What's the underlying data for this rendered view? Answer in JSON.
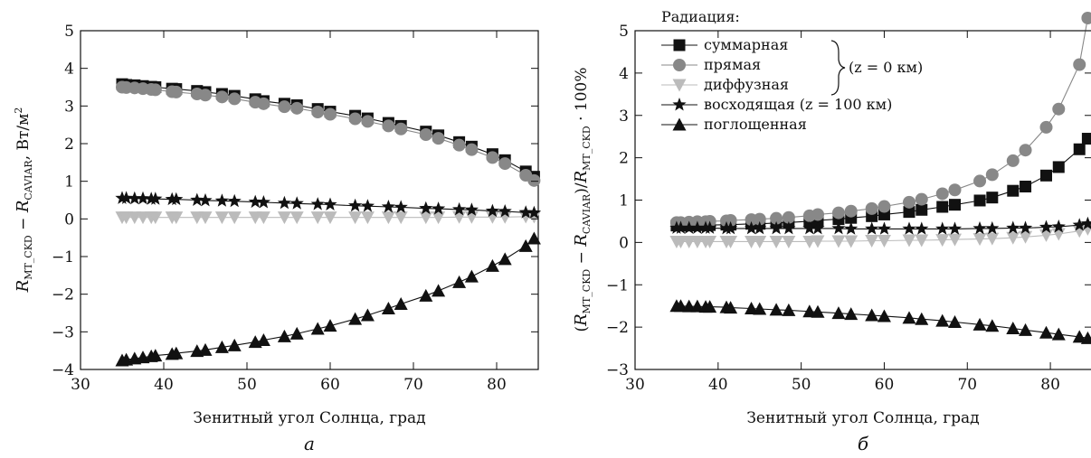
{
  "chart_data": [
    {
      "type": "line",
      "panel_label": "а",
      "xlabel": "Зенитный угол Солнца, град",
      "ylabel": "R_MT_CKD − R_CAVIAR, Вт/м²",
      "ylabel_parts": {
        "r1": "R",
        "s1": "MT_CKD",
        "minus": " − ",
        "r2": "R",
        "s2": "CAVIAR",
        "unit": ", Вт/м",
        "sup": "2"
      },
      "xlim": [
        30,
        85
      ],
      "ylim": [
        -4,
        5
      ],
      "xticks": [
        "30",
        "40",
        "50",
        "60",
        "70",
        "80"
      ],
      "yticks": [
        "−4",
        "−3",
        "−2",
        "−1",
        "0",
        "1",
        "2",
        "3",
        "4",
        "5"
      ],
      "grid": false,
      "x": [
        35.0,
        35.5,
        36.5,
        37.5,
        38.5,
        39.0,
        41.0,
        41.5,
        44.0,
        45.0,
        47.0,
        48.5,
        51.0,
        52.0,
        54.5,
        56.0,
        58.5,
        60.0,
        63.0,
        64.5,
        67.0,
        68.5,
        71.5,
        73.0,
        75.5,
        77.0,
        79.5,
        81.0,
        83.5,
        84.5
      ],
      "series": [
        {
          "name": "суммарная",
          "marker": "square",
          "color": "#111111",
          "values": [
            3.58,
            3.56,
            3.55,
            3.53,
            3.51,
            3.5,
            3.46,
            3.45,
            3.4,
            3.37,
            3.32,
            3.27,
            3.18,
            3.13,
            3.06,
            3.02,
            2.92,
            2.85,
            2.74,
            2.67,
            2.55,
            2.47,
            2.32,
            2.22,
            2.04,
            1.92,
            1.72,
            1.56,
            1.26,
            1.12
          ]
        },
        {
          "name": "прямая",
          "marker": "circle",
          "color": "#888888",
          "values": [
            3.5,
            3.49,
            3.48,
            3.46,
            3.44,
            3.43,
            3.38,
            3.37,
            3.32,
            3.29,
            3.24,
            3.19,
            3.1,
            3.06,
            2.98,
            2.94,
            2.84,
            2.78,
            2.66,
            2.59,
            2.47,
            2.39,
            2.24,
            2.14,
            1.96,
            1.84,
            1.63,
            1.47,
            1.16,
            1.02
          ]
        },
        {
          "name": "диффузная",
          "marker": "triangle-down",
          "color": "#bbbbbb",
          "values": [
            0.04,
            0.04,
            0.04,
            0.04,
            0.04,
            0.04,
            0.04,
            0.04,
            0.04,
            0.04,
            0.04,
            0.04,
            0.04,
            0.04,
            0.04,
            0.04,
            0.04,
            0.04,
            0.04,
            0.04,
            0.04,
            0.04,
            0.04,
            0.04,
            0.05,
            0.05,
            0.05,
            0.05,
            0.06,
            0.06
          ]
        },
        {
          "name": "восходящая",
          "marker": "star",
          "color": "#111111",
          "values": [
            0.55,
            0.55,
            0.54,
            0.54,
            0.53,
            0.53,
            0.52,
            0.52,
            0.5,
            0.49,
            0.48,
            0.47,
            0.45,
            0.44,
            0.42,
            0.41,
            0.39,
            0.38,
            0.35,
            0.34,
            0.32,
            0.31,
            0.28,
            0.27,
            0.25,
            0.24,
            0.21,
            0.2,
            0.17,
            0.16
          ]
        },
        {
          "name": "поглощенная",
          "marker": "triangle-up",
          "color": "#111111",
          "values": [
            -3.76,
            -3.74,
            -3.71,
            -3.68,
            -3.65,
            -3.63,
            -3.59,
            -3.57,
            -3.51,
            -3.48,
            -3.41,
            -3.36,
            -3.27,
            -3.22,
            -3.12,
            -3.05,
            -2.92,
            -2.84,
            -2.66,
            -2.56,
            -2.38,
            -2.26,
            -2.04,
            -1.91,
            -1.68,
            -1.53,
            -1.25,
            -1.07,
            -0.72,
            -0.52
          ]
        }
      ]
    },
    {
      "type": "line",
      "panel_label": "б",
      "xlabel": "Зенитный угол Солнца, град",
      "ylabel": "(R_MT_CKD − R_CAVIAR)/R_MT_CKD · 100%",
      "ylabel_parts": {
        "open": "(",
        "r1": "R",
        "s1": "MT_CKD",
        "minus": " − ",
        "r2": "R",
        "s2": "CAVIAR",
        "close": ")/",
        "r3": "R",
        "s3": "MT_CKD",
        "tail": " · 100%"
      },
      "xlim": [
        30,
        85
      ],
      "ylim": [
        -3,
        5
      ],
      "xticks": [
        "30",
        "40",
        "50",
        "60",
        "70",
        "80"
      ],
      "yticks": [
        "−3",
        "−2",
        "−1",
        "0",
        "1",
        "2",
        "3",
        "4",
        "5"
      ],
      "grid": false,
      "x": [
        35.0,
        35.5,
        36.5,
        37.5,
        38.5,
        39.0,
        41.0,
        41.5,
        44.0,
        45.0,
        47.0,
        48.5,
        51.0,
        52.0,
        54.5,
        56.0,
        58.5,
        60.0,
        63.0,
        64.5,
        67.0,
        68.5,
        71.5,
        73.0,
        75.5,
        77.0,
        79.5,
        81.0,
        83.5,
        84.5
      ],
      "series": [
        {
          "name": "суммарная",
          "marker": "square",
          "color": "#111111",
          "values": [
            0.4,
            0.4,
            0.4,
            0.41,
            0.41,
            0.41,
            0.42,
            0.42,
            0.44,
            0.44,
            0.46,
            0.47,
            0.5,
            0.52,
            0.55,
            0.58,
            0.62,
            0.66,
            0.72,
            0.77,
            0.84,
            0.89,
            0.99,
            1.06,
            1.22,
            1.32,
            1.58,
            1.78,
            2.2,
            2.45
          ]
        },
        {
          "name": "прямая",
          "marker": "circle",
          "color": "#888888",
          "values": [
            0.47,
            0.47,
            0.48,
            0.49,
            0.49,
            0.5,
            0.51,
            0.52,
            0.54,
            0.55,
            0.57,
            0.59,
            0.63,
            0.66,
            0.7,
            0.74,
            0.8,
            0.85,
            0.95,
            1.02,
            1.15,
            1.24,
            1.45,
            1.6,
            1.93,
            2.18,
            2.72,
            3.15,
            4.2,
            5.3
          ]
        },
        {
          "name": "диффузная",
          "marker": "triangle-down",
          "color": "#bbbbbb",
          "values": [
            0.02,
            0.02,
            0.02,
            0.02,
            0.02,
            0.02,
            0.02,
            0.02,
            0.02,
            0.02,
            0.02,
            0.02,
            0.02,
            0.03,
            0.03,
            0.03,
            0.04,
            0.04,
            0.05,
            0.05,
            0.06,
            0.07,
            0.08,
            0.09,
            0.11,
            0.13,
            0.17,
            0.2,
            0.27,
            0.32
          ]
        },
        {
          "name": "восходящая",
          "marker": "star",
          "color": "#111111",
          "values": [
            0.34,
            0.34,
            0.34,
            0.34,
            0.34,
            0.34,
            0.33,
            0.33,
            0.33,
            0.33,
            0.33,
            0.33,
            0.33,
            0.33,
            0.33,
            0.32,
            0.32,
            0.32,
            0.32,
            0.32,
            0.32,
            0.32,
            0.33,
            0.33,
            0.34,
            0.34,
            0.36,
            0.37,
            0.41,
            0.44
          ]
        },
        {
          "name": "поглощенная",
          "marker": "triangle-up",
          "color": "#111111",
          "values": [
            -1.5,
            -1.5,
            -1.51,
            -1.51,
            -1.52,
            -1.52,
            -1.53,
            -1.54,
            -1.56,
            -1.57,
            -1.59,
            -1.6,
            -1.63,
            -1.64,
            -1.67,
            -1.69,
            -1.72,
            -1.74,
            -1.78,
            -1.81,
            -1.85,
            -1.88,
            -1.94,
            -1.97,
            -2.03,
            -2.07,
            -2.13,
            -2.17,
            -2.23,
            -2.26
          ]
        }
      ],
      "legend": {
        "position": "top-left",
        "title": "Радиация:",
        "entries": [
          {
            "label": "суммарная",
            "marker": "square",
            "color": "#111111"
          },
          {
            "label": "прямая",
            "marker": "circle",
            "color": "#888888"
          },
          {
            "label": "диффузная",
            "marker": "triangle-down",
            "color": "#bbbbbb"
          },
          {
            "label": "восходящая (z = 100 км)",
            "marker": "star",
            "color": "#111111"
          },
          {
            "label": "поглощенная",
            "marker": "triangle-up",
            "color": "#111111"
          }
        ],
        "bracket_label": "(z = 0 км)"
      }
    }
  ]
}
